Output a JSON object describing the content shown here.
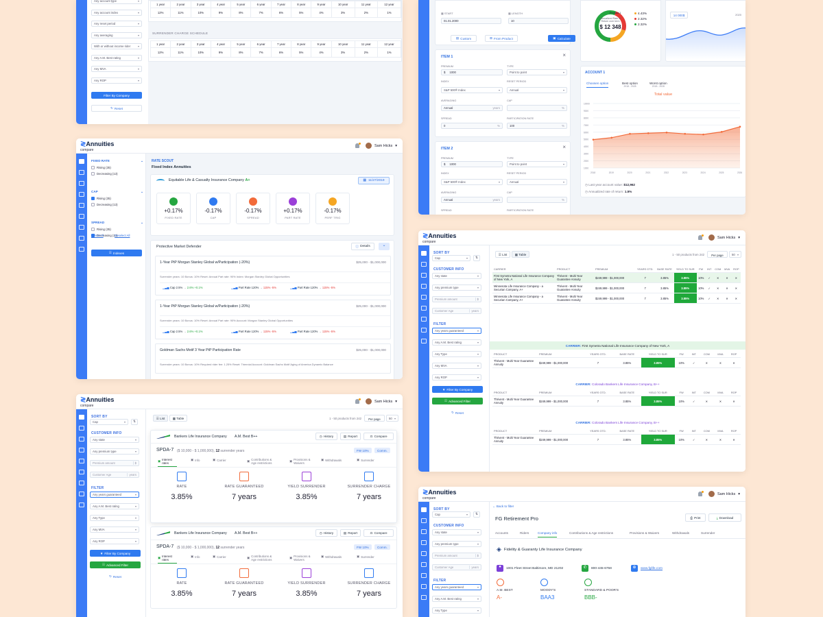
{
  "brand": {
    "name": "Annuities",
    "sub": "compare"
  },
  "user": {
    "name": "Sam Hicks"
  },
  "p1": {
    "filters": [
      "Any account type",
      "Any account index",
      "Any reset period",
      "Any averaging",
      "With or without income rider",
      "Any A.M. Best rating",
      "Any MVA",
      "Any ROP"
    ],
    "filter_btn": "Filter By Company",
    "reset": "Reset",
    "years": [
      "1 year",
      "2 year",
      "3 year",
      "4 year",
      "5 year",
      "6 year",
      "7 year",
      "8 year",
      "9 year",
      "10 year",
      "11 year",
      "12 year"
    ],
    "rates": [
      "12%",
      "11%",
      "10%",
      "9%",
      "8%",
      "7%",
      "6%",
      "5%",
      "4%",
      "3%",
      "2%",
      "1%"
    ],
    "schedule_title": "SURRENDER CHARGE SCHEDULE"
  },
  "p2": {
    "start_label": "START",
    "start_value": "01.01.2000",
    "length_label": "LENGTH",
    "length_value": "10",
    "custom": "Custom",
    "from_product": "From Product",
    "calculate": "Calculate",
    "donut": {
      "center_label": "Annualized Rate of Return over term",
      "center_value": "$ 12 348",
      "legend_title": "Product 1",
      "legend": [
        "4.43%",
        "2.32%",
        "2.32%"
      ]
    },
    "mini_value": "14 000$",
    "mini_year": "2020",
    "account_title": "ACCOUNT 1",
    "tabs": [
      {
        "label": "Choosen option",
        "sub": ""
      },
      {
        "label": "Best option",
        "sub": "2018 - 2028"
      },
      {
        "label": "Worst option",
        "sub": "2018 - 2028"
      }
    ],
    "total_value": "Total value",
    "yticks": [
      "10000",
      "9000",
      "8000",
      "7000",
      "6000",
      "5000",
      "4000",
      "3000",
      "2000",
      "1000"
    ],
    "xticks": [
      "2018",
      "2019",
      "2020",
      "2021",
      "2022",
      "2023",
      "2024",
      "2025",
      "2026"
    ],
    "chart_line": [
      44,
      47,
      53,
      54,
      55,
      53,
      52,
      56,
      64
    ],
    "last_label": "Last year account value:",
    "last_value": "$12,962",
    "ann_label": "Annualized rate of return:",
    "ann_value": "1.5%",
    "items": [
      {
        "title": "ITEM 1",
        "premium": "1000",
        "type": "Point to point",
        "index": "S&P 500® Index",
        "reset": "Annual",
        "averaging": "Annual",
        "cap": "",
        "spread": "0",
        "part": "100"
      },
      {
        "title": "ITEM 2",
        "premium": "1000",
        "type": "Point to point",
        "index": "S&P 500® Index",
        "reset": "Annual",
        "averaging": "Annual",
        "cap": "",
        "spread": "",
        "part": "100"
      }
    ],
    "labels": {
      "premium": "PREMIUM",
      "type": "TYPE",
      "index": "INDEX",
      "reset": "RESET PERIOD",
      "averaging": "AVERAGING",
      "cap": "CAP",
      "spread": "SPREAD",
      "part": "PARTICIPATION RATE"
    }
  },
  "p3": {
    "groups": [
      {
        "title": "FIXED RATE",
        "items": [
          {
            "label": "Rising (35)",
            "on": false
          },
          {
            "label": "Decreasing (13)",
            "on": false
          }
        ]
      },
      {
        "title": "CAP",
        "items": [
          {
            "label": "Rising (35)",
            "on": true
          },
          {
            "label": "Decreasing (13)",
            "on": false
          }
        ]
      },
      {
        "title": "SPREAD",
        "items": [
          {
            "label": "Rising (35)",
            "on": false
          },
          {
            "label": "Decreasing (13)",
            "on": true
          }
        ]
      }
    ],
    "select_all": "Select All",
    "deselect_all": "Deselect All",
    "indexes": "Indexes",
    "crumb": "RATE SCOUT",
    "heading": "Fixed Index Annuities",
    "company": "Equitable Life & Casualty Insurance Company",
    "company_rating": "A+",
    "date": "11/27/2019",
    "metrics": [
      {
        "v": "+0.17%",
        "k": "FIXED RATE",
        "c": "#25a640"
      },
      {
        "v": "-0.17%",
        "k": "CAP",
        "c": "#2f7af0"
      },
      {
        "v": "-0.17%",
        "k": "SPREAD",
        "c": "#f26b3a"
      },
      {
        "v": "+0.17%",
        "k": "PART RATE",
        "c": "#9b3fd8"
      },
      {
        "v": "-0.17%",
        "k": "PERF TRIG",
        "c": "#f5a623"
      }
    ],
    "product": "Protective Market Defender",
    "details": "Details",
    "rows": [
      {
        "title": "1-Year PtP Morgan Stanley Global w/Participation (-20%)",
        "range": "$25,000 - $1,000,000",
        "meta": "Surrender years: 10   Bonus: 10%   Reset: Annual   Part rate: 90%   Index: Morgan Stanley Global Opportunities"
      },
      {
        "title": "1-Year PtP Morgan Stanley Global w/Participation (-20%)",
        "range": "$25,000 - $1,000,000",
        "meta": "Surrender years: 10   Bonus: 10%   Reset: Annual   Part rate: 90%   Account: Morgan Stanley Global Opportunities"
      },
      {
        "title": "Goldman Sachs Motif 3 Year PtP Participation Rate",
        "range": "$25,000 - $1,000,000",
        "meta": "Surrender years: 10   Bonus: 10%   Required rider fee: 1.25%   Reset: Triennial   Account: Goldman Sachs Motif Aging of America Dynamic Balance"
      }
    ],
    "chips": [
      "Cap 2.5%",
      "2.6%",
      "+0.1%",
      "Part Rate 120%",
      "115%",
      "-5%",
      "Part Rate 120%",
      "115%",
      "-5%"
    ]
  },
  "common_side": {
    "sort_by": "SORT BY",
    "sort_value": "Cap",
    "customer_info": "CUSTOMER INFO",
    "state": "Any state",
    "premium_type": "Any premium type",
    "premium_amount": "Premium amount",
    "customer_age": "Customer Age",
    "years": "years",
    "filter": "FILTER",
    "years_guar": "Any years guaranteed",
    "am_best": "Any A.M. Best rating",
    "type": "Any Type",
    "mva": "Any MVA",
    "rop": "Any ROP",
    "filter_btn": "Filter By Company",
    "advanced": "Advanced Filter",
    "reset": "Reset"
  },
  "p4": {
    "list": "List",
    "table": "Table",
    "count": "1 - 50 products from 242",
    "per_page": "Per page",
    "per_value": "50",
    "columns": [
      "CARRIER",
      "PRODUCT",
      "PREMIUM",
      "YEARS GTD.",
      "BASE RATE",
      "YIELD TO SUR",
      "FW",
      "INT",
      "COM",
      "MVA",
      "ROP"
    ],
    "rows": [
      {
        "carrier": "First Symetra National Life Insurance Company of New York, A",
        "product": "Thrivent - Multi Year Guarantee Annuity",
        "premium": "$249,999 - $1,000,000",
        "gtd": "7",
        "base": "3.85%",
        "yield": "3.85%",
        "fw": "10%"
      },
      {
        "carrier": "Minnesota Life Insurance Company - a Securian Company, A+",
        "product": "Thrivent - Multi Year Guarantee Annuity",
        "premium": "$249,999 - $1,000,000",
        "gtd": "7",
        "base": "3.85%",
        "yield": "3.85%",
        "fw": "10%"
      },
      {
        "carrier": "Minnesota Life Insurance Company - a Securian Company, A+",
        "product": "Thrivent - Multi Year Guarantee Annuity",
        "premium": "$249,999 - $1,000,000",
        "gtd": "7",
        "base": "3.85%",
        "yield": "3.85%",
        "fw": "10%"
      }
    ],
    "groups": [
      {
        "carrier_label": "CARRIER:",
        "carrier": "First Symetra National Life Insurance Company of New York, A"
      },
      {
        "carrier_label": "CARRIER:",
        "carrier": "Colorado Bankers Life Insurance Company, B++"
      },
      {
        "carrier_label": "CARRIER:",
        "carrier": "Colorado Bankers Life Insurance Company, B++"
      }
    ],
    "sub_columns": [
      "PRODUCT",
      "PREMIUM",
      "YEARS GTD.",
      "BASE RATE",
      "YIELD TO SUR",
      "FW",
      "INT",
      "COM",
      "MVA",
      "ROP"
    ],
    "sub_row": {
      "product": "Thrivent - Multi Year Guarantee Annuity",
      "premium": "$249,999 - $1,000,000",
      "gtd": "7",
      "base": "3.85%",
      "yield": "3.85%",
      "fw": "10%"
    }
  },
  "p5": {
    "list": "List",
    "table": "Table",
    "count": "1 - 50 products from 242",
    "per_page": "Per page",
    "per_value": "50",
    "cards": [
      {
        "company": "Bankers Life Insurance Company",
        "rating": "A.M. Best B++",
        "history": "History",
        "report": "Report",
        "compare": "Compare",
        "product": "SPDA-7",
        "range": "($ 10,000 - $ 1,000,000),",
        "years": "12",
        "years_label": "surrender years",
        "fw": "FW 10%",
        "comm": "Comm.",
        "tabs": [
          "Interest rates",
          "Info",
          "Carrier",
          "Contributions & Age restrictions",
          "Provisions & Waivers",
          "Withdrawals",
          "Surrender"
        ],
        "stats": [
          {
            "k": "RATE",
            "v": "3.85%"
          },
          {
            "k": "RATE GUARANTEED",
            "v": "7 years"
          },
          {
            "k": "YIELD SURRENDER",
            "v": "3.85%"
          },
          {
            "k": "SURRENDER CHARGE",
            "v": "7 years"
          }
        ]
      },
      {
        "company": "Bankers Life Insurance Company",
        "rating": "A.M. Best B++",
        "history": "History",
        "report": "Report",
        "compare": "Compare",
        "product": "SPDA-7",
        "range": "($ 10,000 - $ 1,000,000),",
        "years": "12",
        "years_label": "surrender years",
        "fw": "FW 10%",
        "comm": "Comm.",
        "tabs": [
          "Interest rates",
          "Info",
          "Carrier",
          "Contributions & Age restrictions",
          "Provisions & Waivers",
          "Withdrawals",
          "Surrender"
        ],
        "stats": [
          {
            "k": "RATE",
            "v": "3.85%"
          },
          {
            "k": "RATE GUARANTEED",
            "v": "7 years"
          },
          {
            "k": "YIELD SURRENDER",
            "v": "3.85%"
          },
          {
            "k": "SURRENDER CHARGE",
            "v": "7 years"
          }
        ]
      }
    ]
  },
  "p6": {
    "back": "Back to filter",
    "title": "FG Retirement Pro",
    "print": "Print",
    "download": "Download",
    "tabs": [
      "Accounts",
      "Riders",
      "Company info",
      "Contributions & Age restrictions",
      "Provisions & Waivers",
      "Withdrawals",
      "Surrender"
    ],
    "company": "Fidelity & Guaranty Life Insurance Company",
    "address": "1001 Fleet Street Baltimore, MD 21202",
    "phone": "800-445-6758",
    "site": "www.fglife.com",
    "ratings": [
      {
        "k": "A.M. BEST",
        "v": "A-"
      },
      {
        "k": "MOODY'S",
        "v": "BAA3"
      },
      {
        "k": "STANDARD & POOR'S",
        "v": "BBB-"
      }
    ]
  }
}
